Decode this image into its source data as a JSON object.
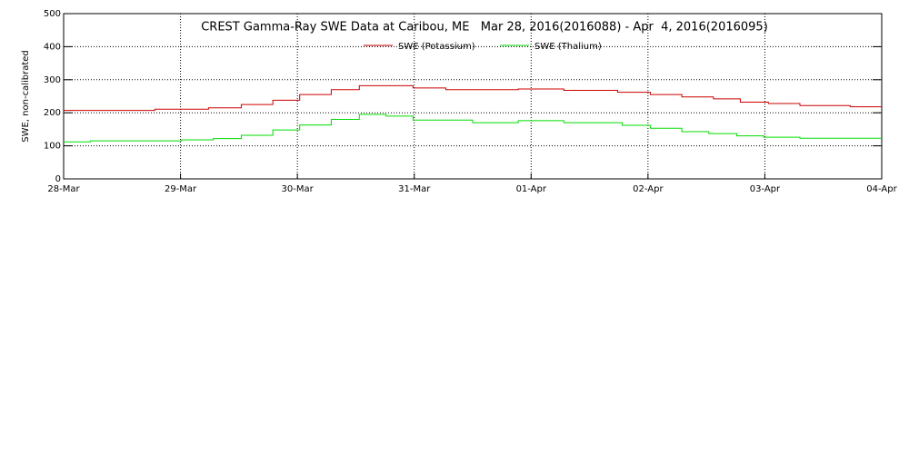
{
  "chart_data": {
    "type": "line",
    "title": "CREST Gamma-Ray SWE Data at Caribou, ME   Mar 28, 2016(2016088) - Apr  4, 2016(2016095)",
    "y_label": "SWE, non-calibrated",
    "xlim": [
      0,
      7
    ],
    "ylim": [
      0,
      500
    ],
    "xticks": [
      {
        "value": 0,
        "label": "28-Mar"
      },
      {
        "value": 1,
        "label": "29-Mar"
      },
      {
        "value": 2,
        "label": "30-Mar"
      },
      {
        "value": 3,
        "label": "31-Mar"
      },
      {
        "value": 4,
        "label": "01-Apr"
      },
      {
        "value": 5,
        "label": "02-Apr"
      },
      {
        "value": 6,
        "label": "03-Apr"
      },
      {
        "value": 7,
        "label": "04-Apr"
      }
    ],
    "yticks": [
      0,
      100,
      200,
      300,
      400,
      500
    ],
    "grid": true,
    "series": [
      {
        "name": "SWE (Potassium)",
        "color": "#cc0000",
        "x": [
          0,
          0.78,
          0.78,
          1.24,
          1.24,
          1.52,
          1.52,
          1.79,
          1.79,
          2.02,
          2.02,
          2.29,
          2.29,
          2.53,
          2.53,
          2.99,
          2.99,
          3.27,
          3.27,
          3.89,
          3.89,
          4.28,
          4.28,
          4.74,
          4.74,
          5.02,
          5.02,
          5.29,
          5.29,
          5.56,
          5.56,
          5.79,
          5.79,
          6.03,
          6.03,
          6.3,
          6.3,
          6.73,
          6.73,
          7
        ],
        "values": [
          207,
          207,
          211,
          211,
          215,
          215,
          225,
          225,
          238,
          238,
          255,
          255,
          270,
          270,
          282,
          282,
          275,
          275,
          270,
          270,
          272,
          272,
          268,
          268,
          262,
          262,
          255,
          255,
          248,
          248,
          242,
          242,
          232,
          232,
          228,
          228,
          222,
          222,
          218,
          218
        ]
      },
      {
        "name": "SWE (Thalium)",
        "color": "#00dd00",
        "x": [
          0,
          0.23,
          0.23,
          1.01,
          1.01,
          1.28,
          1.28,
          1.52,
          1.52,
          1.79,
          1.79,
          2.02,
          2.02,
          2.29,
          2.29,
          2.53,
          2.53,
          2.76,
          2.76,
          2.99,
          2.99,
          3.5,
          3.5,
          3.89,
          3.89,
          4.28,
          4.28,
          4.78,
          4.78,
          5.02,
          5.02,
          5.29,
          5.29,
          5.52,
          5.52,
          5.76,
          5.76,
          5.99,
          5.99,
          6.3,
          6.3,
          7
        ],
        "values": [
          112,
          112,
          115,
          115,
          118,
          118,
          122,
          122,
          132,
          132,
          148,
          148,
          163,
          163,
          180,
          180,
          195,
          195,
          190,
          190,
          178,
          178,
          170,
          170,
          176,
          176,
          170,
          170,
          162,
          162,
          153,
          153,
          143,
          143,
          137,
          137,
          130,
          130,
          126,
          126,
          123,
          123
        ]
      }
    ]
  }
}
